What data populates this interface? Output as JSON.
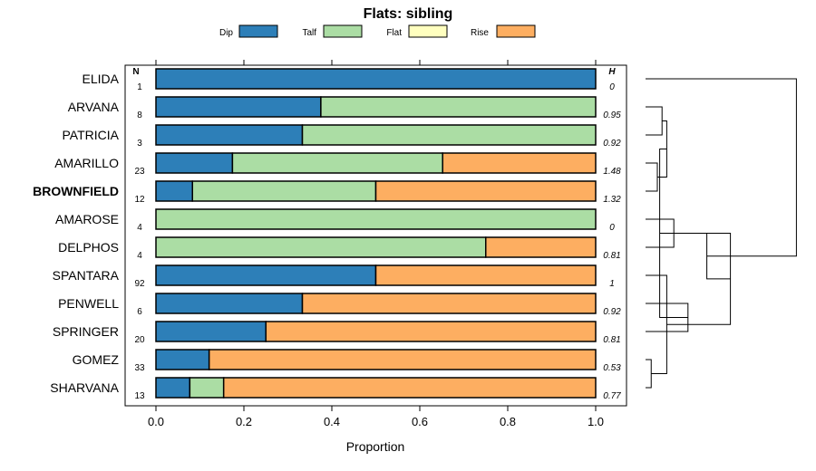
{
  "chart_data": {
    "type": "bar",
    "stacked": true,
    "orientation": "horizontal",
    "title": "Flats: sibling",
    "xlabel": "Proportion",
    "xlim": [
      0,
      1
    ],
    "x_ticks": [
      "0.0",
      "0.2",
      "0.4",
      "0.6",
      "0.8",
      "1.0"
    ],
    "n_header": "N",
    "h_header": "H",
    "highlighted": "BROWNFIELD",
    "legend": [
      {
        "name": "Dip",
        "color": "#2d7fb8"
      },
      {
        "name": "Talf",
        "color": "#abdda4"
      },
      {
        "name": "Flat",
        "color": "#ffffbf"
      },
      {
        "name": "Rise",
        "color": "#fdae61"
      }
    ],
    "categories": [
      "ELIDA",
      "ARVANA",
      "PATRICIA",
      "AMARILLO",
      "BROWNFIELD",
      "AMAROSE",
      "DELPHOS",
      "SPANTARA",
      "PENWELL",
      "SPRINGER",
      "GOMEZ",
      "SHARVANA"
    ],
    "n": [
      "1",
      "8",
      "3",
      "23",
      "12",
      "4",
      "4",
      "92",
      "6",
      "20",
      "33",
      "13"
    ],
    "h": [
      "0",
      "0.95",
      "0.92",
      "1.48",
      "1.32",
      "0",
      "0.81",
      "1",
      "0.92",
      "0.81",
      "0.53",
      "0.77"
    ],
    "series": [
      {
        "name": "Dip",
        "values": [
          1.0,
          0.375,
          0.333,
          0.174,
          0.083,
          0.0,
          0.0,
          0.5,
          0.333,
          0.25,
          0.121,
          0.077
        ]
      },
      {
        "name": "Talf",
        "values": [
          0.0,
          0.625,
          0.667,
          0.478,
          0.417,
          1.0,
          0.75,
          0.0,
          0.0,
          0.0,
          0.0,
          0.077
        ]
      },
      {
        "name": "Flat",
        "values": [
          0,
          0,
          0,
          0,
          0,
          0,
          0,
          0,
          0,
          0,
          0,
          0
        ]
      },
      {
        "name": "Rise",
        "values": [
          0.0,
          0.0,
          0.0,
          0.348,
          0.5,
          0.0,
          0.25,
          0.5,
          0.667,
          0.75,
          0.879,
          0.846
        ]
      }
    ],
    "dendrogram": [
      [
        1,
        2,
        0.35
      ],
      [
        3,
        4,
        0.25
      ],
      [
        5,
        6,
        0.6
      ],
      [
        -1,
        -2,
        0.45
      ],
      [
        8,
        9,
        0.9
      ],
      [
        10,
        11,
        0.12
      ],
      [
        -4,
        -5,
        0.3
      ],
      [
        7,
        -6,
        0.45
      ],
      [
        -7,
        -8,
        1.8
      ],
      [
        -3,
        -9,
        1.3
      ],
      [
        0,
        -10,
        3.2
      ]
    ]
  }
}
